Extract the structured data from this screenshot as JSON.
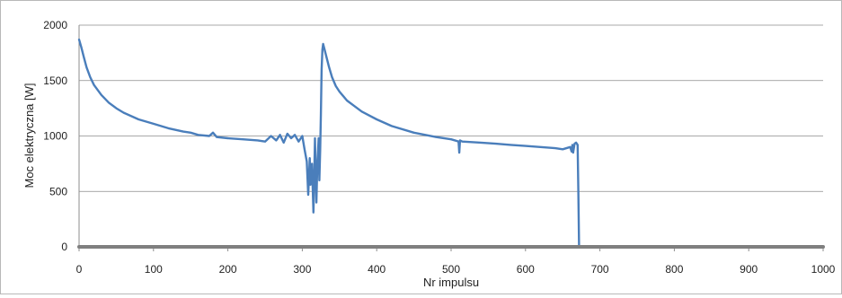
{
  "chart_data": {
    "type": "line",
    "title": "",
    "xlabel": "Nr impulsu",
    "ylabel": "Moc elektryczna [W]",
    "xlim": [
      0,
      1000
    ],
    "ylim": [
      0,
      2000
    ],
    "xticks": [
      0,
      100,
      200,
      300,
      400,
      500,
      600,
      700,
      800,
      900,
      1000
    ],
    "yticks": [
      0,
      500,
      1000,
      1500,
      2000
    ],
    "grid": "horizontal",
    "legend": "none",
    "series": [
      {
        "color": "#4a7ebb",
        "x": [
          0,
          3,
          6,
          10,
          15,
          20,
          30,
          40,
          50,
          60,
          80,
          100,
          120,
          140,
          150,
          160,
          175,
          180,
          185,
          200,
          220,
          240,
          250,
          258,
          265,
          270,
          275,
          280,
          285,
          290,
          295,
          300,
          303,
          306,
          308,
          310,
          311,
          313,
          315,
          316,
          317,
          319,
          320,
          322,
          323,
          324,
          325,
          326,
          327,
          328,
          330,
          333,
          336,
          340,
          345,
          350,
          360,
          370,
          380,
          400,
          420,
          450,
          480,
          500,
          510,
          511,
          512,
          515,
          540,
          560,
          580,
          600,
          620,
          640,
          650,
          660,
          662,
          663,
          664,
          666,
          668,
          670,
          671,
          672,
          673,
          680,
          700,
          800,
          900,
          1000
        ],
        "values": [
          1870,
          1800,
          1720,
          1620,
          1530,
          1460,
          1370,
          1300,
          1250,
          1210,
          1150,
          1110,
          1070,
          1040,
          1030,
          1010,
          1000,
          1030,
          990,
          980,
          970,
          960,
          950,
          1000,
          960,
          1010,
          940,
          1020,
          980,
          1010,
          950,
          1000,
          880,
          770,
          470,
          800,
          560,
          750,
          310,
          600,
          980,
          400,
          700,
          980,
          600,
          870,
          1200,
          1600,
          1780,
          1830,
          1780,
          1700,
          1620,
          1530,
          1450,
          1400,
          1320,
          1270,
          1220,
          1150,
          1090,
          1030,
          990,
          970,
          950,
          850,
          960,
          950,
          940,
          930,
          920,
          910,
          900,
          890,
          880,
          900,
          860,
          920,
          850,
          930,
          940,
          920,
          500,
          0,
          0,
          0,
          0,
          0,
          0,
          0
        ]
      },
      {
        "color": "#7f7f7f",
        "x": [
          0,
          1000
        ],
        "values": [
          0,
          0
        ]
      }
    ]
  }
}
